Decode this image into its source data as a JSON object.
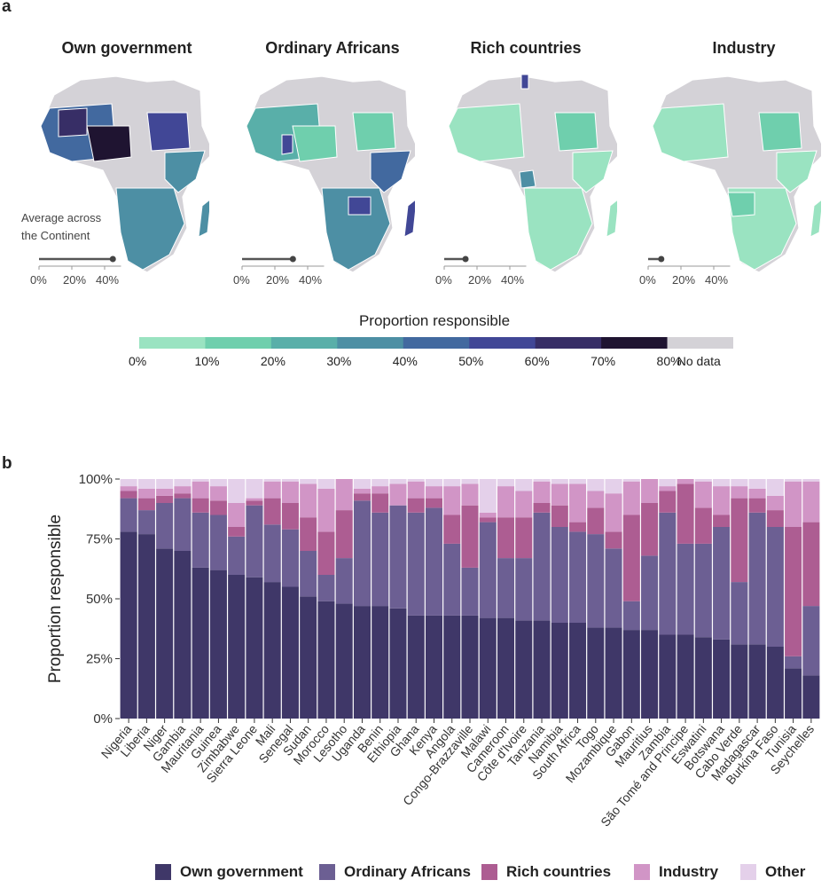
{
  "panel_a": {
    "letter": "a",
    "maps": [
      {
        "title": "Own government",
        "average_pct": 45
      },
      {
        "title": "Ordinary Africans",
        "average_pct": 31
      },
      {
        "title": "Rich countries",
        "average_pct": 13
      },
      {
        "title": "Industry",
        "average_pct": 8
      }
    ],
    "average_note_line1": "Average across",
    "average_note_line2": "the Continent",
    "scale_ticks": [
      "0%",
      "20%",
      "40%"
    ],
    "legend": {
      "title": "Proportion responsible",
      "labels": [
        "0%",
        "10%",
        "20%",
        "30%",
        "40%",
        "50%",
        "60%",
        "70%",
        "80%",
        "No data"
      ],
      "colors": [
        "#9ae3c1",
        "#6fcfad",
        "#59afa9",
        "#4d8fa4",
        "#42699f",
        "#414796",
        "#372e66",
        "#1f1431",
        "#d4d2d7"
      ]
    }
  },
  "panel_b": {
    "letter": "b"
  },
  "chart_data": {
    "type": "bar",
    "stacked": true,
    "title": "",
    "xlabel": "",
    "ylabel": "Proportion responsible",
    "ylim": [
      0,
      100
    ],
    "yticks": [
      "0%",
      "25%",
      "50%",
      "75%",
      "100%"
    ],
    "categories": [
      "Nigeria",
      "Liberia",
      "Niger",
      "Gambia",
      "Mauritania",
      "Guinea",
      "Zimbabwe",
      "Sierra Leone",
      "Mali",
      "Senegal",
      "Sudan",
      "Morocco",
      "Lesotho",
      "Uganda",
      "Benin",
      "Ethiopia",
      "Ghana",
      "Kenya",
      "Angola",
      "Congo-Brazzaville",
      "Malawi",
      "Cameroon",
      "Côte d'Ivoire",
      "Tanzania",
      "Namibia",
      "South Africa",
      "Togo",
      "Mozambique",
      "Gabon",
      "Mauritius",
      "Zambia",
      "São Tomé and Principe",
      "Eswatini",
      "Botswana",
      "Cabo Verde",
      "Madagascar",
      "Burkina Faso",
      "Tunisia",
      "Seychelles"
    ],
    "series": [
      {
        "name": "Own government",
        "color": "#3f3768",
        "values": [
          78,
          77,
          71,
          70,
          63,
          62,
          60,
          59,
          57,
          55,
          51,
          49,
          48,
          47,
          47,
          46,
          43,
          43,
          43,
          43,
          42,
          42,
          41,
          41,
          40,
          40,
          38,
          38,
          37,
          37,
          35,
          35,
          34,
          33,
          31,
          31,
          30,
          21,
          18
        ]
      },
      {
        "name": "Ordinary Africans",
        "color": "#6c5f93",
        "values": [
          14,
          10,
          19,
          22,
          23,
          23,
          16,
          30,
          24,
          24,
          19,
          11,
          19,
          44,
          39,
          43,
          43,
          45,
          30,
          20,
          40,
          25,
          26,
          45,
          40,
          38,
          39,
          33,
          12,
          31,
          51,
          38,
          39,
          47,
          26,
          55,
          50,
          5,
          29
        ]
      },
      {
        "name": "Rich countries",
        "color": "#ad5d92",
        "values": [
          3,
          5,
          3,
          2,
          6,
          6,
          4,
          2,
          11,
          11,
          14,
          18,
          20,
          3,
          8,
          0,
          6,
          4,
          12,
          26,
          2,
          17,
          17,
          4,
          9,
          4,
          11,
          7,
          36,
          22,
          9,
          25,
          15,
          5,
          35,
          6,
          7,
          54,
          35
        ]
      },
      {
        "name": "Industry",
        "color": "#d195c6",
        "values": [
          2,
          4,
          3,
          3,
          7,
          6,
          10,
          1,
          7,
          9,
          14,
          18,
          13,
          2,
          3,
          9,
          7,
          5,
          12,
          9,
          2,
          13,
          11,
          9,
          9,
          16,
          7,
          16,
          14,
          10,
          2,
          2,
          11,
          12,
          5,
          4,
          6,
          19,
          17
        ]
      },
      {
        "name": "Other",
        "color": "#e4d0ea",
        "values": [
          3,
          4,
          4,
          3,
          1,
          3,
          10,
          8,
          1,
          1,
          2,
          4,
          0,
          4,
          3,
          2,
          1,
          3,
          3,
          2,
          14,
          3,
          5,
          1,
          2,
          2,
          5,
          6,
          1,
          0,
          3,
          0,
          1,
          3,
          3,
          4,
          7,
          1,
          1
        ]
      }
    ]
  }
}
